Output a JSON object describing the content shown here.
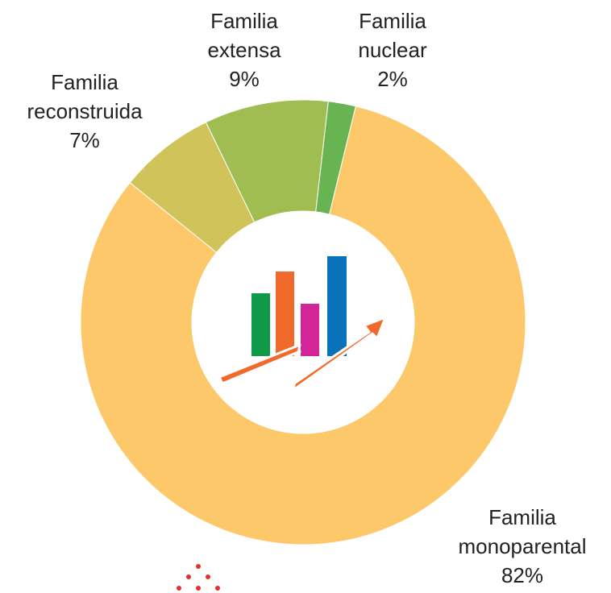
{
  "chart_data": {
    "type": "donut",
    "categories": [
      "Familia nuclear",
      "Familia monoparental",
      "Familia reconstruida",
      "Familia extensa"
    ],
    "values": [
      2,
      82,
      7,
      9
    ],
    "value_labels": [
      "2%",
      "82%",
      "7%",
      "9%"
    ],
    "colors": [
      "#68b352",
      "#fdc86a",
      "#cfc35a",
      "#9fbd50"
    ]
  }
}
